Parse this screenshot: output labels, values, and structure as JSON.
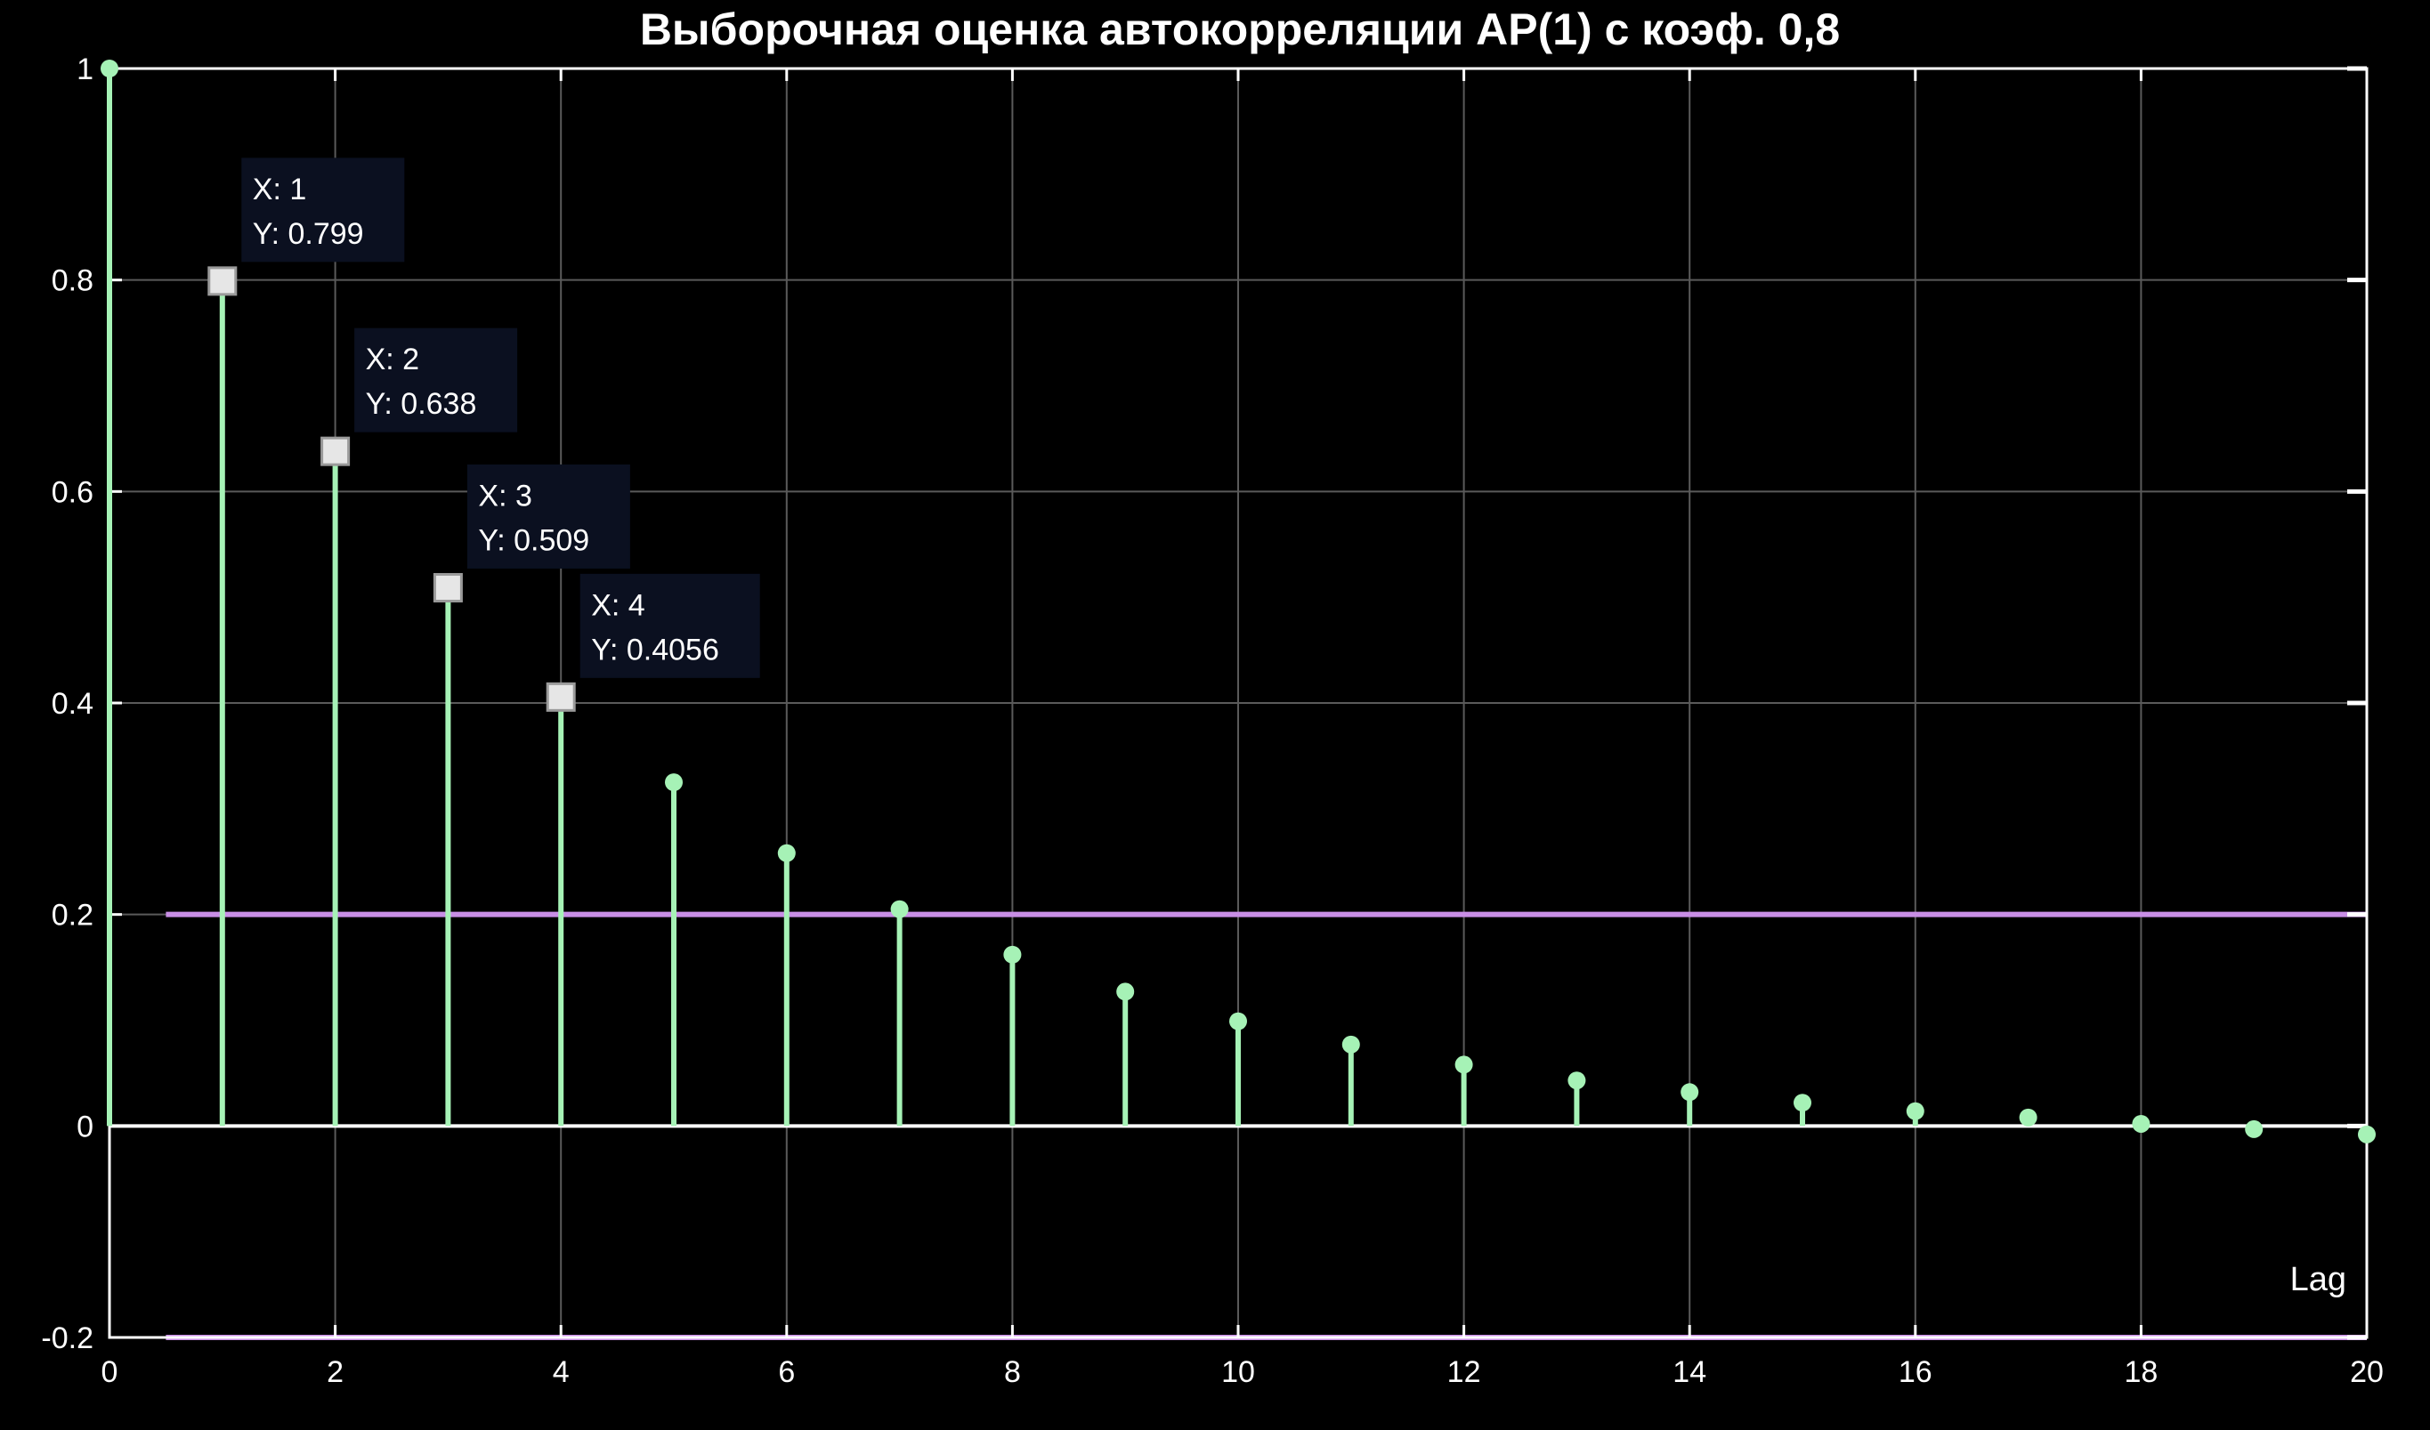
{
  "chart_data": {
    "type": "stem",
    "title": "Выборочная оценка автокорреляции АР(1) с коэф. 0,8",
    "xlabel": "Lag",
    "ylabel": "",
    "xlim": [
      0,
      20
    ],
    "ylim": [
      -0.2,
      1
    ],
    "grid": true,
    "x_ticks": [
      "0",
      "2",
      "4",
      "6",
      "8",
      "10",
      "12",
      "14",
      "16",
      "18",
      "20"
    ],
    "y_ticks": [
      "-0.2",
      "0",
      "0.2",
      "0.4",
      "0.6",
      "0.8",
      "1"
    ],
    "x_tick_values": [
      0,
      2,
      4,
      6,
      8,
      10,
      12,
      14,
      16,
      18,
      20
    ],
    "y_tick_values": [
      -0.2,
      0,
      0.2,
      0.4,
      0.6,
      0.8,
      1
    ],
    "x": [
      0,
      1,
      2,
      3,
      4,
      5,
      6,
      7,
      8,
      9,
      10,
      11,
      12,
      13,
      14,
      15,
      16,
      17,
      18,
      19,
      20
    ],
    "values": [
      1,
      0.799,
      0.638,
      0.509,
      0.4056,
      0.325,
      0.258,
      0.205,
      0.162,
      0.127,
      0.099,
      0.077,
      0.058,
      0.043,
      0.032,
      0.022,
      0.014,
      0.008,
      0.002,
      -0.003,
      -0.008
    ],
    "reference_lines": [
      {
        "y": 0.2,
        "x_start": 0.5,
        "x_end": 20,
        "color": "#c98ee6"
      },
      {
        "y": -0.2,
        "x_start": 0.5,
        "x_end": 20,
        "color": "#c98ee6"
      }
    ],
    "stem_color": "#a6f2b6",
    "datatips": [
      {
        "x": 1,
        "lines": [
          "X: 1",
          "Y: 0.799"
        ]
      },
      {
        "x": 2,
        "lines": [
          "X: 2",
          "Y: 0.638"
        ]
      },
      {
        "x": 3,
        "lines": [
          "X: 3",
          "Y: 0.509"
        ]
      },
      {
        "x": 4,
        "lines": [
          "X: 4",
          "Y: 0.4056"
        ]
      }
    ]
  }
}
